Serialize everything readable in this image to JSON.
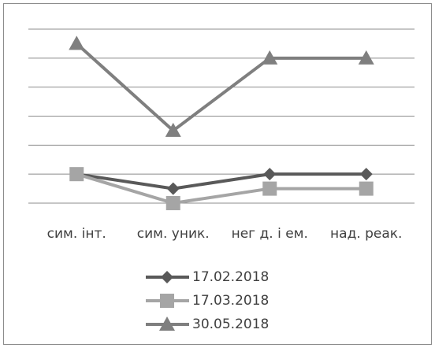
{
  "chart_data": {
    "type": "line",
    "categories": [
      "сим. інт.",
      "сим. уник.",
      "нег д. і ем.",
      "над. реак."
    ],
    "series": [
      {
        "name": "17.02.2018",
        "color": "#595959",
        "marker": "diamond",
        "values": [
          1,
          0.5,
          1,
          1
        ]
      },
      {
        "name": "17.03.2018",
        "color": "#a5a5a5",
        "marker": "square",
        "values": [
          1,
          0,
          0.5,
          0.5
        ]
      },
      {
        "name": "30.05.2018",
        "color": "#7f7f7f",
        "marker": "triangle",
        "values": [
          5.5,
          2.5,
          5,
          5
        ]
      }
    ],
    "ylim": [
      0,
      6
    ],
    "yticks": [
      0,
      1,
      2,
      3,
      4,
      5,
      6
    ],
    "grid": true,
    "legend": "bottom"
  }
}
